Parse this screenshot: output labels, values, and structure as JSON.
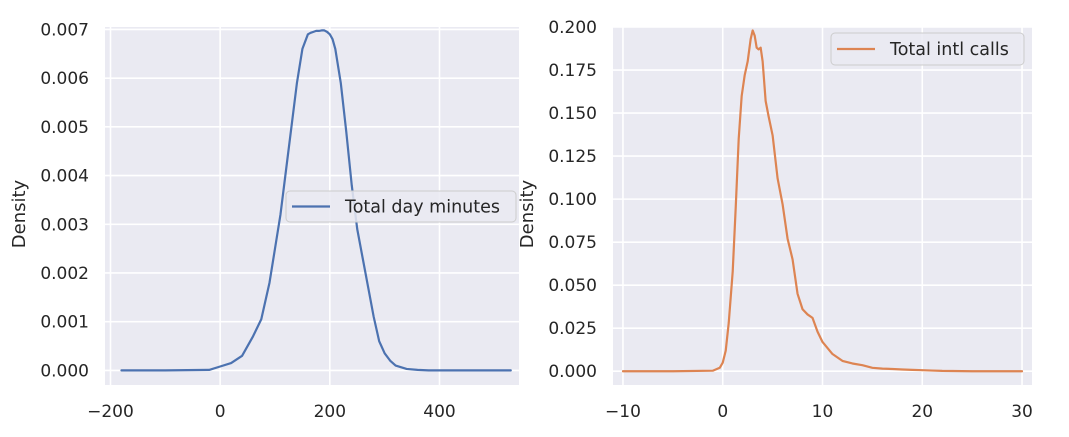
{
  "chart_data": [
    {
      "type": "line",
      "ylabel": "Density",
      "xlim": [
        -210,
        545
      ],
      "ylim": [
        -0.0003,
        0.00705
      ],
      "x_ticks": [
        -200,
        0,
        200,
        400
      ],
      "x_tick_labels": [
        "−200",
        "0",
        "200",
        "400"
      ],
      "y_ticks": [
        0.0,
        0.001,
        0.002,
        0.003,
        0.004,
        0.005,
        0.006,
        0.007
      ],
      "y_tick_labels": [
        "0.000",
        "0.001",
        "0.002",
        "0.003",
        "0.004",
        "0.005",
        "0.006",
        "0.007"
      ],
      "grid": true,
      "legend_position": "center-right",
      "series": [
        {
          "name": "Total day minutes",
          "color": "#4c72b0",
          "x": [
            -180,
            -100,
            -20,
            0,
            20,
            40,
            60,
            75,
            90,
            100,
            110,
            120,
            130,
            140,
            150,
            160,
            165,
            170,
            175,
            180,
            185,
            190,
            195,
            200,
            205,
            210,
            220,
            230,
            240,
            250,
            260,
            270,
            280,
            290,
            300,
            310,
            320,
            340,
            360,
            380,
            400,
            450,
            530
          ],
          "y": [
            0.0,
            0.0,
            1e-05,
            8e-05,
            0.00015,
            0.0003,
            0.0007,
            0.00105,
            0.0018,
            0.0025,
            0.0032,
            0.0041,
            0.005,
            0.0059,
            0.0066,
            0.0069,
            0.00693,
            0.00695,
            0.00697,
            0.00697,
            0.00698,
            0.00698,
            0.00695,
            0.0069,
            0.0068,
            0.0066,
            0.0059,
            0.0049,
            0.0038,
            0.0029,
            0.0023,
            0.0017,
            0.0011,
            0.0006,
            0.00035,
            0.0002,
            0.0001,
            3e-05,
            1e-05,
            0.0,
            0.0,
            0.0,
            0.0
          ]
        }
      ]
    },
    {
      "type": "line",
      "ylabel": "Density",
      "xlim": [
        -11.0,
        31.0
      ],
      "ylim": [
        -0.008,
        0.2
      ],
      "x_ticks": [
        -10,
        0,
        10,
        20,
        30
      ],
      "x_tick_labels": [
        "−10",
        "0",
        "10",
        "20",
        "30"
      ],
      "y_ticks": [
        0.0,
        0.025,
        0.05,
        0.075,
        0.1,
        0.125,
        0.15,
        0.175,
        0.2
      ],
      "y_tick_labels": [
        "0.000",
        "0.025",
        "0.050",
        "0.075",
        "0.100",
        "0.125",
        "0.150",
        "0.175",
        "0.200"
      ],
      "grid": true,
      "legend_position": "top-right",
      "series": [
        {
          "name": "Total intl calls",
          "color": "#dd8452",
          "x": [
            -10,
            -5,
            -1,
            -0.3,
            0,
            0.3,
            0.6,
            1.0,
            1.3,
            1.6,
            1.9,
            2.2,
            2.5,
            2.8,
            3.0,
            3.2,
            3.4,
            3.6,
            3.8,
            4.0,
            4.3,
            4.6,
            5.0,
            5.5,
            6.0,
            6.5,
            7.0,
            7.5,
            8.0,
            8.5,
            9.0,
            9.5,
            10.0,
            11.0,
            12.0,
            13.0,
            14.0,
            15.0,
            16.0,
            17.0,
            18.0,
            19.0,
            20.0,
            21.0,
            22.0,
            25.0,
            30.0
          ],
          "y": [
            0.0,
            0.0,
            0.0003,
            0.002,
            0.005,
            0.012,
            0.028,
            0.058,
            0.095,
            0.135,
            0.16,
            0.172,
            0.18,
            0.193,
            0.198,
            0.195,
            0.188,
            0.187,
            0.188,
            0.18,
            0.157,
            0.148,
            0.137,
            0.112,
            0.097,
            0.077,
            0.065,
            0.045,
            0.036,
            0.033,
            0.031,
            0.023,
            0.017,
            0.01,
            0.006,
            0.0045,
            0.0035,
            0.002,
            0.0015,
            0.0013,
            0.001,
            0.0008,
            0.0006,
            0.0004,
            0.0002,
            0.0,
            0.0
          ]
        }
      ]
    }
  ]
}
